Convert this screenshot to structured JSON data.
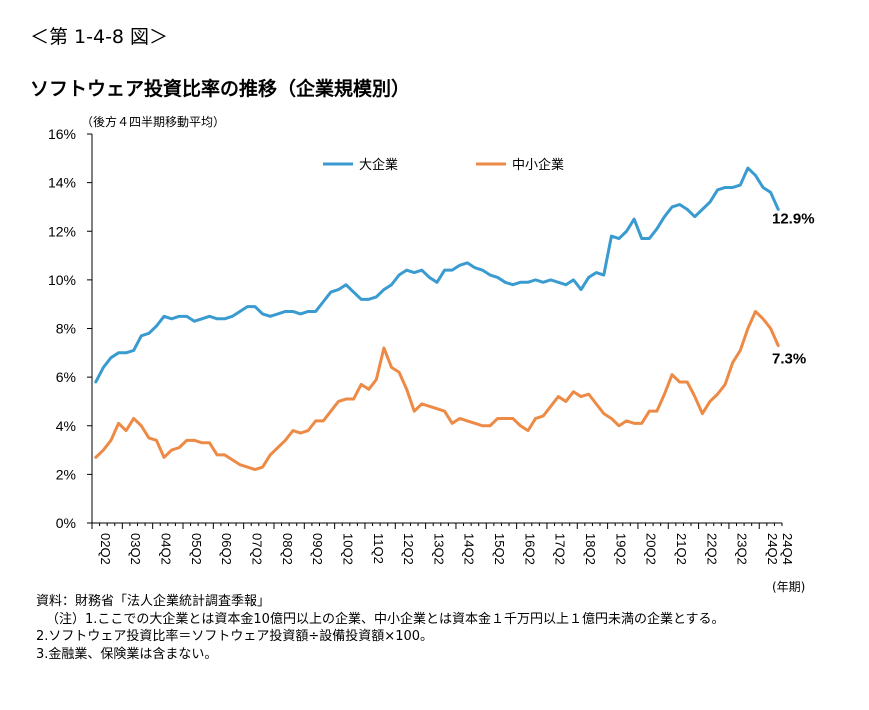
{
  "figure_label": "＜第 1-4-8 図＞",
  "title": "ソフトウェア投資比率の推移（企業規模別）",
  "note_top": "（後方４四半期移動平均）",
  "x_unit": "(年期)",
  "notes": [
    "資料：財務省「法人企業統計調査季報」",
    "（注）1.ここでの大企業とは資本金10億円以上の企業、中小企業とは資本金１千万円以上１億円未満の企業とする。",
    "2.ソフトウェア投資比率＝ソフトウェア投資額÷設備投資額×100。",
    "3.金融業、保険業は含まない。"
  ],
  "colors": {
    "large": "#3A9BD0",
    "small": "#ED8A46",
    "axis": "#000000"
  },
  "chart_data": {
    "type": "line",
    "title": "ソフトウェア投資比率の推移（企業規模別）",
    "xlabel": "(年期)",
    "ylabel": "",
    "ylim": [
      0,
      16
    ],
    "yticks": [
      "0%",
      "2%",
      "4%",
      "6%",
      "8%",
      "10%",
      "12%",
      "14%",
      "16%"
    ],
    "xticks": [
      "02Q2",
      "03Q2",
      "04Q2",
      "05Q2",
      "06Q2",
      "07Q2",
      "08Q2",
      "09Q2",
      "10Q2",
      "11Q2",
      "12Q2",
      "13Q2",
      "14Q2",
      "15Q2",
      "16Q2",
      "17Q2",
      "18Q2",
      "19Q2",
      "20Q2",
      "21Q2",
      "22Q2",
      "23Q2",
      "24Q2",
      "24Q4"
    ],
    "legend": "top-center",
    "end_labels": [
      "12.9%",
      "7.3%"
    ],
    "series": [
      {
        "name": "大企業",
        "values": [
          5.8,
          6.4,
          6.8,
          7.0,
          7.0,
          7.1,
          7.7,
          7.8,
          8.1,
          8.5,
          8.4,
          8.5,
          8.5,
          8.3,
          8.4,
          8.5,
          8.4,
          8.4,
          8.5,
          8.7,
          8.9,
          8.9,
          8.6,
          8.5,
          8.6,
          8.7,
          8.7,
          8.6,
          8.7,
          8.7,
          9.1,
          9.5,
          9.6,
          9.8,
          9.5,
          9.2,
          9.2,
          9.3,
          9.6,
          9.8,
          10.2,
          10.4,
          10.3,
          10.4,
          10.1,
          9.9,
          10.4,
          10.4,
          10.6,
          10.7,
          10.5,
          10.4,
          10.2,
          10.1,
          9.9,
          9.8,
          9.9,
          9.9,
          10.0,
          9.9,
          10.0,
          9.9,
          9.8,
          10.0,
          9.6,
          10.1,
          10.3,
          10.2,
          11.8,
          11.7,
          12.0,
          12.5,
          11.7,
          11.7,
          12.1,
          12.6,
          13.0,
          13.1,
          12.9,
          12.6,
          12.9,
          13.2,
          13.7,
          13.8,
          13.8,
          13.9,
          14.6,
          14.3,
          13.8,
          13.6,
          12.9
        ]
      },
      {
        "name": "中小企業",
        "values": [
          2.7,
          3.0,
          3.4,
          4.1,
          3.8,
          4.3,
          4.0,
          3.5,
          3.4,
          2.7,
          3.0,
          3.1,
          3.4,
          3.4,
          3.3,
          3.3,
          2.8,
          2.8,
          2.6,
          2.4,
          2.3,
          2.2,
          2.3,
          2.8,
          3.1,
          3.4,
          3.8,
          3.7,
          3.8,
          4.2,
          4.2,
          4.6,
          5.0,
          5.1,
          5.1,
          5.7,
          5.5,
          5.9,
          7.2,
          6.4,
          6.2,
          5.5,
          4.6,
          4.9,
          4.8,
          4.7,
          4.6,
          4.1,
          4.3,
          4.2,
          4.1,
          4.0,
          4.0,
          4.3,
          4.3,
          4.3,
          4.0,
          3.8,
          4.3,
          4.4,
          4.8,
          5.2,
          5.0,
          5.4,
          5.2,
          5.3,
          4.9,
          4.5,
          4.3,
          4.0,
          4.2,
          4.1,
          4.1,
          4.6,
          4.6,
          5.3,
          6.1,
          5.8,
          5.8,
          5.2,
          4.5,
          5.0,
          5.3,
          5.7,
          6.6,
          7.1,
          8.0,
          8.7,
          8.4,
          8.0,
          7.3
        ]
      }
    ]
  }
}
